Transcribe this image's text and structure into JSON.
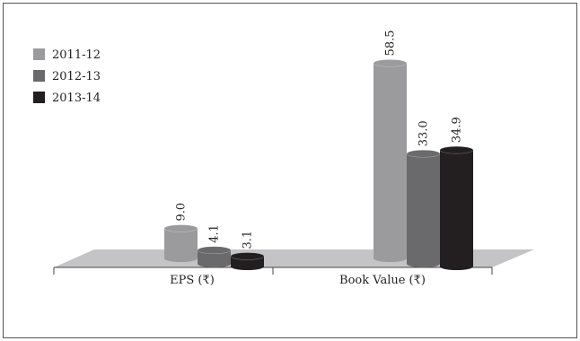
{
  "chart_data": {
    "type": "bar",
    "categories": [
      "EPS (₹)",
      "Book Value (₹)"
    ],
    "series": [
      {
        "name": "2011-12",
        "values": [
          9.0,
          58.5
        ],
        "labels": [
          "9.0",
          "58.5"
        ],
        "color": "#9b9b9e"
      },
      {
        "name": "2012-13",
        "values": [
          4.1,
          33.0
        ],
        "labels": [
          "4.1",
          "33.0"
        ],
        "color": "#6a6a6d"
      },
      {
        "name": "2013-14",
        "values": [
          3.1,
          34.9
        ],
        "labels": [
          "3.1",
          "34.9"
        ],
        "color": "#231f20"
      }
    ],
    "title": "",
    "xlabel": "",
    "ylabel": "",
    "ylim": [
      0,
      60
    ],
    "grid": false,
    "legend": "top-left",
    "floor_color": "#c4c4c6"
  }
}
